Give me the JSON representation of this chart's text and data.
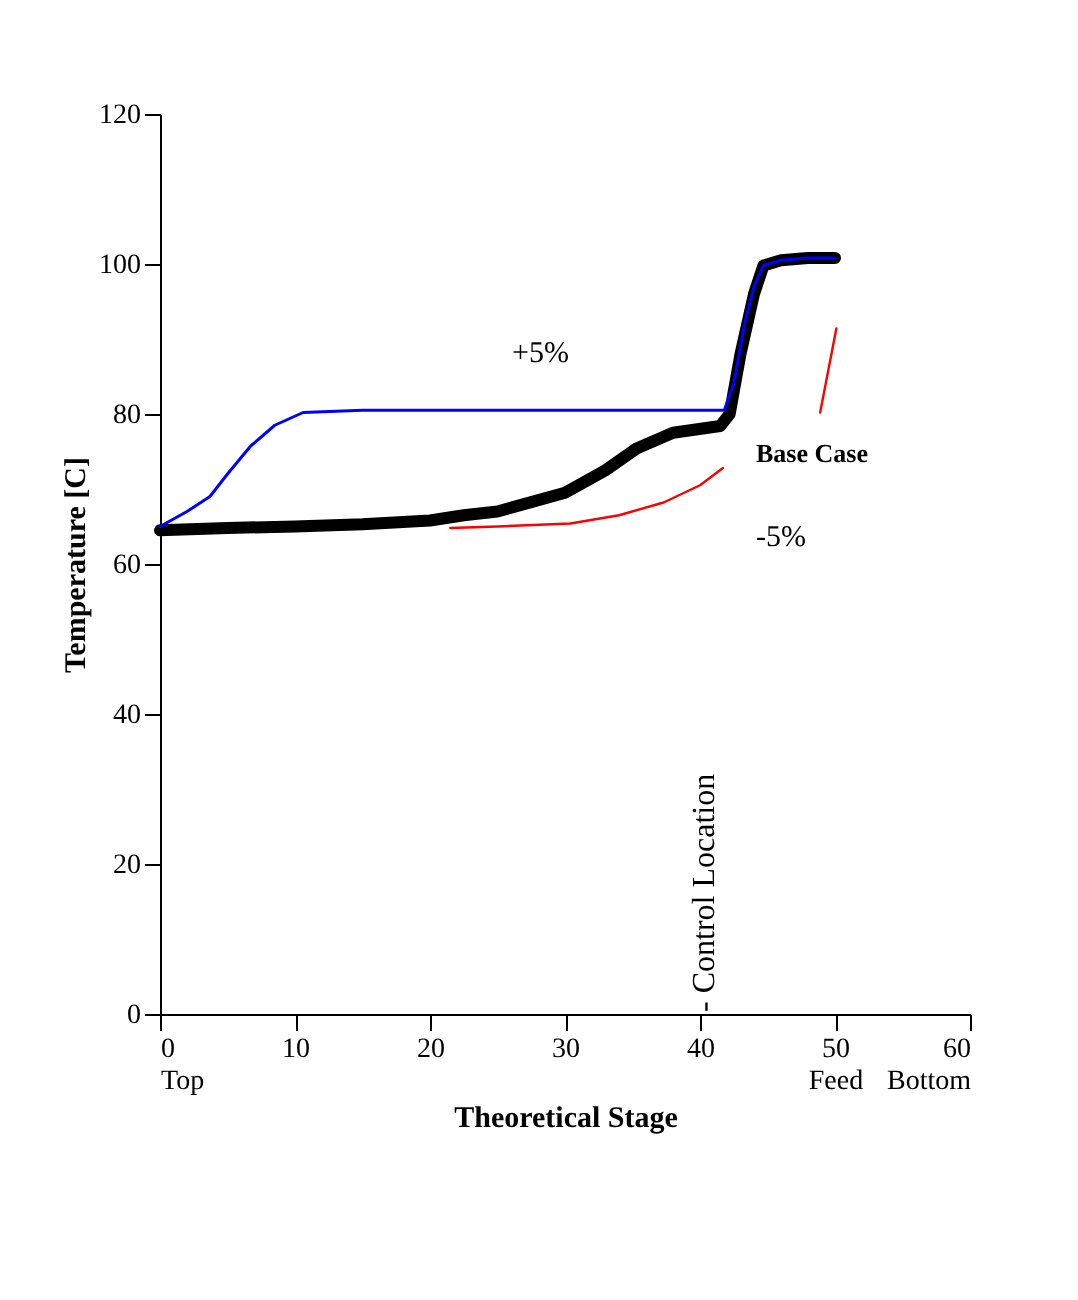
{
  "chart_data": {
    "type": "line",
    "xlabel": "Theoretical Stage",
    "ylabel": "Temperature [C]",
    "xlim": [
      0,
      60
    ],
    "ylim": [
      0,
      120
    ],
    "xticks": [
      {
        "value": 0,
        "label": "0\nTop"
      },
      10,
      20,
      30,
      40,
      {
        "value": 50,
        "label": "50\nFeed"
      },
      {
        "value": 60,
        "label": "60\nBottom"
      }
    ],
    "yticks": [
      0,
      20,
      40,
      60,
      80,
      100,
      120
    ],
    "grid": false,
    "marker": "none",
    "line_style": "solid",
    "series": [
      {
        "color": "#ff0000",
        "x": [
          21.5,
          25,
          30.4,
          34,
          37.3,
          40,
          41.7,
          45,
          48.9,
          50.1
        ],
        "values": [
          64.8,
          65,
          65.4,
          66.5,
          68.2,
          70.5,
          72.8,
          null,
          80.2,
          91.4
        ]
      },
      {
        "color": "#000000",
        "x": [
          0,
          5,
          10,
          15,
          20,
          22.5,
          25,
          30,
          33,
          35.3,
          38,
          41.5,
          42.2,
          43,
          44,
          44.7,
          46,
          48,
          50
        ],
        "values": [
          64.5,
          64.8,
          65,
          65.3,
          65.8,
          66.5,
          67,
          69.5,
          72.5,
          75.4,
          77.5,
          78.4,
          80,
          88,
          96,
          99.8,
          100.5,
          100.8,
          100.8
        ]
      },
      {
        "color": "#0000ff",
        "x": [
          0,
          2,
          3.7,
          5,
          6.7,
          8.5,
          10.6,
          15,
          20,
          30,
          41.8,
          42.5,
          43.3,
          44,
          44.7,
          46,
          48,
          50
        ],
        "values": [
          65,
          67,
          69,
          72,
          75.7,
          78.5,
          80.2,
          80.5,
          80.5,
          80.5,
          80.5,
          84,
          92,
          97,
          99.8,
          100.5,
          100.8,
          100.8
        ]
      }
    ],
    "annotations": [
      "+5%",
      "Base Case",
      "-5%",
      "- Control Location"
    ]
  }
}
